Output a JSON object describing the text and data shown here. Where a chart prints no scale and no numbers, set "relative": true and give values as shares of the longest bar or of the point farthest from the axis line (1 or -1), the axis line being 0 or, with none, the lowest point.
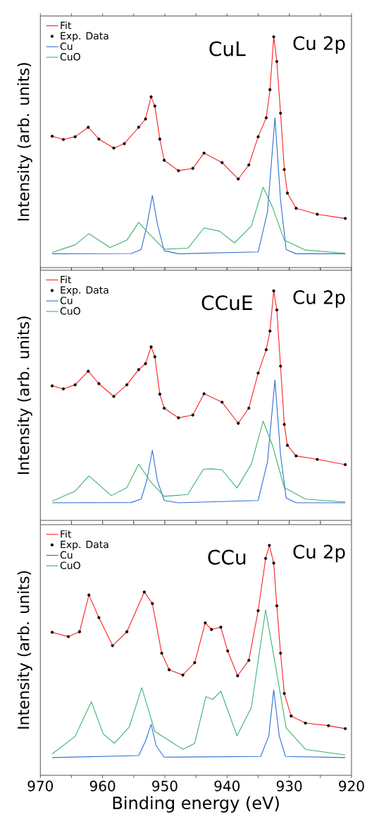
{
  "chart_data": [
    {
      "type": "line",
      "title": "CuL",
      "annotations": [
        "Cu 2p"
      ],
      "ylabel": "Intensity (arb. units)",
      "xlim": [
        970,
        920
      ],
      "xticks": [
        970,
        {
          "value": 965,
          "label": null
        },
        960,
        {
          "value": 955,
          "label": null
        },
        950,
        {
          "value": 945,
          "label": null
        },
        940,
        {
          "value": 935,
          "label": null
        },
        930,
        {
          "value": 925,
          "label": null
        },
        920
      ],
      "tick_labels": false,
      "relative": true,
      "legend": "top left",
      "series": [
        {
          "name": "Fit",
          "type": "line",
          "color": "#ff2020",
          "x": [
            968.1,
            966.3,
            964.4,
            962.3,
            960.6,
            958.2,
            956.5,
            954.2,
            953.1,
            952.2,
            951.6,
            950.8,
            950.1,
            947.8,
            945.5,
            943.7,
            940.8,
            938.2,
            936.5,
            935.0,
            933.7,
            933.1,
            932.5,
            932.0,
            931.4,
            930.8,
            930.3,
            928.9,
            925.5,
            921.0
          ],
          "values": [
            0.569,
            0.555,
            0.567,
            0.608,
            0.557,
            0.518,
            0.537,
            0.608,
            0.644,
            0.74,
            0.7,
            0.557,
            0.465,
            0.42,
            0.43,
            0.496,
            0.455,
            0.384,
            0.445,
            0.567,
            0.649,
            0.771,
            1.0,
            0.893,
            0.669,
            0.425,
            0.323,
            0.257,
            0.231,
            0.213
          ]
        },
        {
          "name": "Exp. Data",
          "type": "scatter",
          "marker": "circle",
          "color": "#000000",
          "x": [
            968.1,
            966.3,
            964.4,
            962.3,
            960.6,
            958.2,
            956.5,
            954.2,
            953.1,
            952.2,
            951.6,
            950.8,
            950.1,
            947.8,
            945.5,
            943.7,
            940.8,
            938.2,
            936.5,
            935.0,
            933.7,
            933.1,
            932.5,
            932.0,
            931.4,
            930.8,
            930.3,
            928.9,
            925.5,
            921.0
          ],
          "values": [
            0.569,
            0.555,
            0.567,
            0.608,
            0.557,
            0.518,
            0.537,
            0.608,
            0.644,
            0.74,
            0.7,
            0.557,
            0.465,
            0.42,
            0.43,
            0.496,
            0.455,
            0.384,
            0.445,
            0.567,
            0.649,
            0.771,
            1.0,
            0.893,
            0.669,
            0.425,
            0.323,
            0.257,
            0.231,
            0.213
          ]
        },
        {
          "name": "Cu",
          "type": "line",
          "color": "#2f6fd6",
          "x": [
            968.1,
            955.4,
            953.8,
            952.9,
            952.0,
            951.2,
            950.1,
            947.8,
            935.0,
            933.5,
            932.3,
            931.4,
            930.5,
            928.9,
            921.0
          ],
          "values": [
            0.06,
            0.061,
            0.078,
            0.18,
            0.313,
            0.19,
            0.073,
            0.06,
            0.068,
            0.241,
            0.649,
            0.292,
            0.078,
            0.06,
            0.06
          ]
        },
        {
          "name": "CuO",
          "type": "line",
          "color": "#3cb371",
          "x": [
            968.1,
            964.4,
            962.2,
            958.8,
            956.1,
            954.2,
            952.3,
            950.1,
            946.3,
            943.7,
            941.2,
            938.8,
            936.1,
            934.2,
            932.7,
            930.8,
            927.4,
            921.0
          ],
          "values": [
            0.066,
            0.099,
            0.147,
            0.087,
            0.119,
            0.196,
            0.14,
            0.08,
            0.084,
            0.172,
            0.158,
            0.107,
            0.18,
            0.348,
            0.262,
            0.119,
            0.076,
            0.062
          ]
        }
      ]
    },
    {
      "type": "line",
      "title": "CCuE",
      "annotations": [
        "Cu 2p"
      ],
      "ylabel": "Intensity (arb. units)",
      "xlim": [
        970,
        920
      ],
      "xticks": [
        970,
        {
          "value": 965,
          "label": null
        },
        960,
        {
          "value": 955,
          "label": null
        },
        950,
        {
          "value": 945,
          "label": null
        },
        940,
        {
          "value": 935,
          "label": null
        },
        930,
        {
          "value": 925,
          "label": null
        },
        920
      ],
      "tick_labels": false,
      "relative": true,
      "legend": "top left",
      "series": [
        {
          "name": "Fit",
          "type": "line",
          "color": "#ff2020",
          "x": [
            968.1,
            966.3,
            964.4,
            962.3,
            960.6,
            958.2,
            956.1,
            954.2,
            953.1,
            952.2,
            951.6,
            950.8,
            950.1,
            947.8,
            945.5,
            943.7,
            940.8,
            938.2,
            936.5,
            935.0,
            933.7,
            933.1,
            932.5,
            932.0,
            931.4,
            930.8,
            930.3,
            928.9,
            925.5,
            921.0
          ],
          "values": [
            0.586,
            0.573,
            0.591,
            0.65,
            0.596,
            0.54,
            0.591,
            0.657,
            0.683,
            0.756,
            0.713,
            0.55,
            0.489,
            0.447,
            0.459,
            0.552,
            0.515,
            0.423,
            0.489,
            0.642,
            0.744,
            0.825,
            1.0,
            0.917,
            0.672,
            0.418,
            0.327,
            0.281,
            0.266,
            0.243
          ]
        },
        {
          "name": "Exp. Data",
          "type": "scatter",
          "marker": "circle",
          "color": "#000000",
          "x": [
            968.1,
            966.3,
            964.4,
            962.3,
            960.6,
            958.2,
            956.1,
            954.2,
            953.1,
            952.2,
            951.6,
            950.8,
            950.1,
            947.8,
            945.5,
            943.7,
            940.8,
            938.2,
            936.5,
            935.0,
            933.7,
            933.1,
            932.5,
            932.0,
            931.4,
            930.8,
            930.3,
            928.9,
            925.5,
            921.0
          ],
          "values": [
            0.586,
            0.573,
            0.591,
            0.65,
            0.596,
            0.54,
            0.591,
            0.657,
            0.683,
            0.756,
            0.713,
            0.55,
            0.489,
            0.447,
            0.459,
            0.552,
            0.515,
            0.423,
            0.489,
            0.642,
            0.744,
            0.825,
            1.0,
            0.917,
            0.672,
            0.418,
            0.327,
            0.281,
            0.266,
            0.243
          ]
        },
        {
          "name": "Cu",
          "type": "line",
          "color": "#2f6fd6",
          "x": [
            968.1,
            955.4,
            953.8,
            952.9,
            952.0,
            951.2,
            950.1,
            947.8,
            935.0,
            933.5,
            932.3,
            931.4,
            930.5,
            928.9,
            921.0
          ],
          "values": [
            0.077,
            0.078,
            0.093,
            0.174,
            0.306,
            0.174,
            0.087,
            0.077,
            0.087,
            0.255,
            0.611,
            0.286,
            0.098,
            0.077,
            0.077
          ]
        },
        {
          "name": "CuO",
          "type": "line",
          "color": "#3cb371",
          "x": [
            968.1,
            964.4,
            962.2,
            958.6,
            956.1,
            954.2,
            952.3,
            950.1,
            946.3,
            943.8,
            942.5,
            940.8,
            938.4,
            936.1,
            934.2,
            932.7,
            930.8,
            927.4,
            921.0
          ],
          "values": [
            0.084,
            0.128,
            0.194,
            0.108,
            0.143,
            0.245,
            0.169,
            0.105,
            0.113,
            0.223,
            0.225,
            0.22,
            0.141,
            0.245,
            0.432,
            0.327,
            0.143,
            0.093,
            0.08
          ]
        }
      ]
    },
    {
      "type": "line",
      "title": "CCu",
      "annotations": [
        "Cu 2p"
      ],
      "ylabel": "Intensity (arb. units)",
      "xlabel": "Binding energy (eV)",
      "xlim": [
        970,
        920
      ],
      "xticks": [
        970,
        {
          "value": 965,
          "label": null
        },
        960,
        {
          "value": 955,
          "label": null
        },
        950,
        {
          "value": 945,
          "label": null
        },
        940,
        {
          "value": 935,
          "label": null
        },
        930,
        {
          "value": 925,
          "label": null
        },
        920
      ],
      "tick_labels": "x",
      "relative": true,
      "legend": "top left",
      "series": [
        {
          "name": "Fit",
          "type": "line",
          "color": "#ff2020",
          "x": [
            968.1,
            965.5,
            963.7,
            962.2,
            960.6,
            958.4,
            956.1,
            953.3,
            952.0,
            950.5,
            949.3,
            947.1,
            945.2,
            943.5,
            942.5,
            941.0,
            939.9,
            938.3,
            936.5,
            935.0,
            933.8,
            933.2,
            932.5,
            932.0,
            931.4,
            930.8,
            929.7,
            927.4,
            923.7,
            921.0
          ],
          "values": [
            0.622,
            0.603,
            0.624,
            0.784,
            0.686,
            0.564,
            0.624,
            0.797,
            0.747,
            0.531,
            0.459,
            0.436,
            0.49,
            0.663,
            0.634,
            0.644,
            0.541,
            0.433,
            0.5,
            0.716,
            0.943,
            1.0,
            0.923,
            0.737,
            0.531,
            0.356,
            0.258,
            0.227,
            0.216,
            0.203
          ]
        },
        {
          "name": "Exp. Data",
          "type": "scatter",
          "marker": "circle",
          "color": "#000000",
          "x": [
            968.1,
            965.5,
            963.7,
            962.2,
            960.6,
            958.4,
            956.1,
            953.3,
            952.0,
            950.5,
            949.3,
            947.1,
            945.2,
            943.5,
            942.5,
            941.0,
            939.9,
            938.3,
            936.5,
            935.0,
            933.8,
            933.2,
            932.5,
            932.0,
            931.4,
            930.8,
            929.7,
            927.4,
            923.7,
            921.0
          ],
          "values": [
            0.622,
            0.603,
            0.624,
            0.784,
            0.686,
            0.564,
            0.624,
            0.797,
            0.747,
            0.531,
            0.459,
            0.436,
            0.49,
            0.663,
            0.634,
            0.644,
            0.541,
            0.433,
            0.5,
            0.716,
            0.943,
            1.0,
            0.923,
            0.737,
            0.531,
            0.356,
            0.258,
            0.227,
            0.216,
            0.203
          ]
        },
        {
          "name": "Cu",
          "type": "line",
          "color": "#2f6fd6",
          "x": [
            968.1,
            954.2,
            953.1,
            952.2,
            951.4,
            950.1,
            934.6,
            933.3,
            932.5,
            931.6,
            930.6,
            921.0
          ],
          "values": [
            0.077,
            0.086,
            0.149,
            0.222,
            0.129,
            0.079,
            0.082,
            0.17,
            0.371,
            0.17,
            0.082,
            0.077
          ]
        },
        {
          "name": "CuO",
          "type": "line",
          "color": "#3cb371",
          "x": [
            968.1,
            964.4,
            961.8,
            959.9,
            958.1,
            955.7,
            953.7,
            951.6,
            947.1,
            945.2,
            943.4,
            942.3,
            941.0,
            938.4,
            936.1,
            933.8,
            932.3,
            930.5,
            927.4,
            921.0
          ],
          "values": [
            0.093,
            0.17,
            0.32,
            0.18,
            0.139,
            0.211,
            0.381,
            0.191,
            0.113,
            0.139,
            0.342,
            0.33,
            0.366,
            0.172,
            0.294,
            0.72,
            0.49,
            0.206,
            0.113,
            0.088
          ]
        }
      ]
    }
  ]
}
